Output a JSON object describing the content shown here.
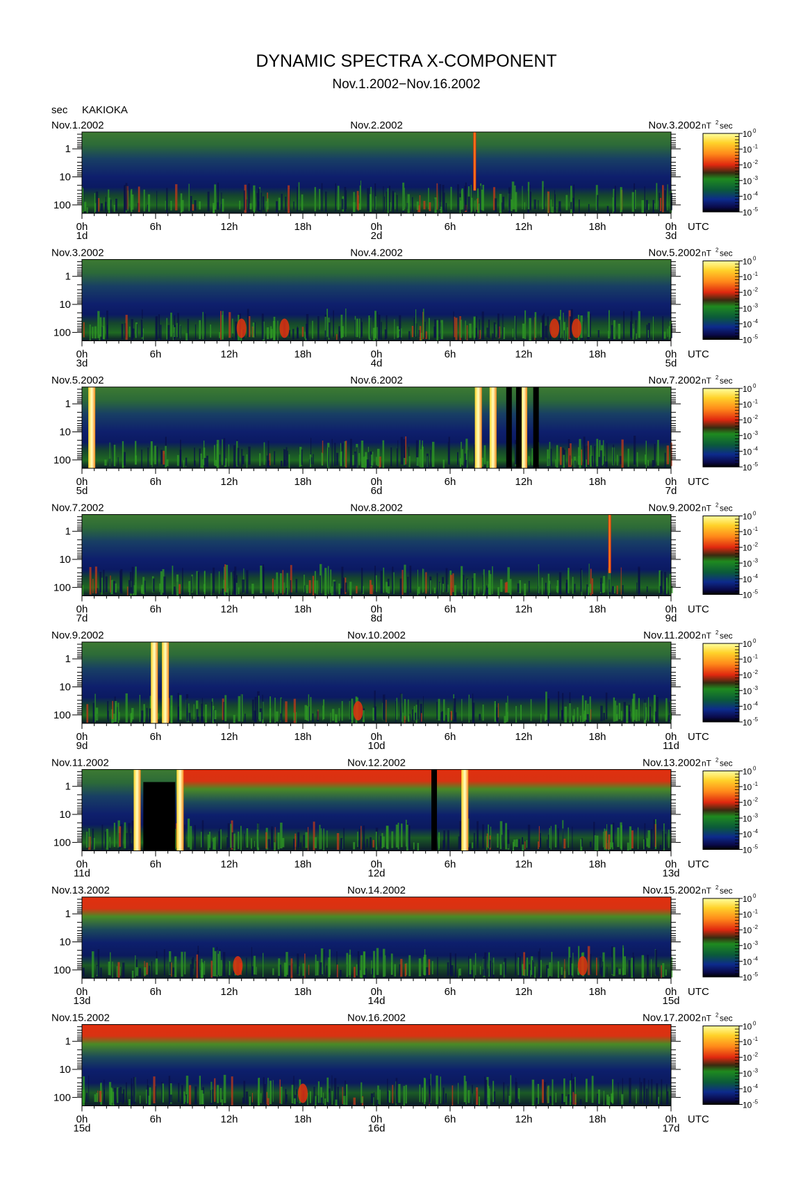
{
  "title": "DYNAMIC SPECTRA X-COMPONENT",
  "subtitle": "Nov.1.2002−Nov.16.2002",
  "ylabel_unit": "sec",
  "station": "KAKIOKA",
  "colorbar_unit": "nT",
  "colorbar_unit_sup": "2",
  "colorbar_unit_tail": "sec",
  "time_zone": "UTC",
  "colors": {
    "scale": [
      "#000000",
      "#0a0a5a",
      "#0d2a8c",
      "#0b5a3a",
      "#1f8a1f",
      "#3aa02a",
      "#b03a18",
      "#e0280f",
      "#ff5a14",
      "#ff9a1e",
      "#ffd22a",
      "#ffff8a"
    ]
  },
  "chart_data": {
    "type": "heatmap",
    "description_unit": "spectral power density, nT^2 sec",
    "y_axis": {
      "label": "sec",
      "ticks": [
        "1",
        "10",
        "100"
      ],
      "scale": "log",
      "inverted": true
    },
    "x_axis": {
      "label": "UTC",
      "ticks": [
        "0h",
        "6h",
        "12h",
        "18h",
        "0h",
        "6h",
        "12h",
        "18h",
        "0h"
      ]
    },
    "colorbar": {
      "label": "nT^2 sec",
      "ticks": [
        {
          "base": "10",
          "exp": "0"
        },
        {
          "base": "10",
          "exp": "-1"
        },
        {
          "base": "10",
          "exp": "-2"
        },
        {
          "base": "10",
          "exp": "-3"
        },
        {
          "base": "10",
          "exp": "-4"
        },
        {
          "base": "10",
          "exp": "-5"
        }
      ]
    },
    "panels": [
      {
        "left": "Nov.1.2002",
        "mid": "Nov.2.2002",
        "right": "Nov.3.2002",
        "days": [
          "1d",
          "2d",
          "3d"
        ],
        "events": [
          {
            "hour": 32.0,
            "kind": "spike"
          }
        ]
      },
      {
        "left": "Nov.3.2002",
        "mid": "Nov.4.2002",
        "right": "Nov.5.2002",
        "days": [
          "3d",
          "4d",
          "5d"
        ],
        "events": [
          {
            "hour": 13.0,
            "kind": "blob"
          },
          {
            "hour": 16.5,
            "kind": "blob"
          },
          {
            "hour": 38.5,
            "kind": "blob"
          },
          {
            "hour": 40.3,
            "kind": "blob"
          }
        ]
      },
      {
        "left": "Nov.5.2002",
        "mid": "Nov.6.2002",
        "right": "Nov.7.2002",
        "days": [
          "5d",
          "6d",
          "7d"
        ],
        "events": [
          {
            "hour": 0.8,
            "kind": "storm"
          },
          {
            "hour": 32.3,
            "kind": "storm"
          },
          {
            "hour": 33.5,
            "kind": "storm"
          },
          {
            "hour": 36.0,
            "kind": "storm"
          },
          {
            "hour": 34.8,
            "kind": "gap"
          },
          {
            "hour": 35.6,
            "kind": "gap"
          },
          {
            "hour": 37.0,
            "kind": "gap"
          }
        ]
      },
      {
        "left": "Nov.7.2002",
        "mid": "Nov.8.2002",
        "right": "Nov.9.2002",
        "days": [
          "7d",
          "8d",
          "9d"
        ],
        "events": [
          {
            "hour": 43.0,
            "kind": "spike"
          }
        ]
      },
      {
        "left": "Nov.9.2002",
        "mid": "Nov.10.2002",
        "right": "Nov.11.2002",
        "days": [
          "9d",
          "10d",
          "11d"
        ],
        "events": [
          {
            "hour": 5.9,
            "kind": "storm"
          },
          {
            "hour": 6.8,
            "kind": "storm"
          },
          {
            "hour": 22.5,
            "kind": "blob"
          }
        ]
      },
      {
        "left": "Nov.11.2002",
        "mid": "Nov.12.2002",
        "right": "Nov.13.2002",
        "days": [
          "11d",
          "12d",
          "13d"
        ],
        "events": [
          {
            "hour": 4.5,
            "kind": "storm"
          },
          {
            "hour": 8.0,
            "kind": "storm"
          },
          {
            "hour": 31.2,
            "kind": "storm"
          },
          {
            "hour": 28.7,
            "kind": "gap"
          }
        ]
      },
      {
        "left": "Nov.13.2002",
        "mid": "Nov.14.2002",
        "right": "Nov.15.2002",
        "days": [
          "13d",
          "14d",
          "15d"
        ],
        "events": [
          {
            "hour": 12.7,
            "kind": "blob"
          },
          {
            "hour": 40.8,
            "kind": "blob"
          }
        ]
      },
      {
        "left": "Nov.15.2002",
        "mid": "Nov.16.2002",
        "right": "Nov.17.2002",
        "days": [
          "15d",
          "16d",
          "17d"
        ],
        "events": [
          {
            "hour": 18.0,
            "kind": "blob"
          }
        ]
      }
    ]
  }
}
